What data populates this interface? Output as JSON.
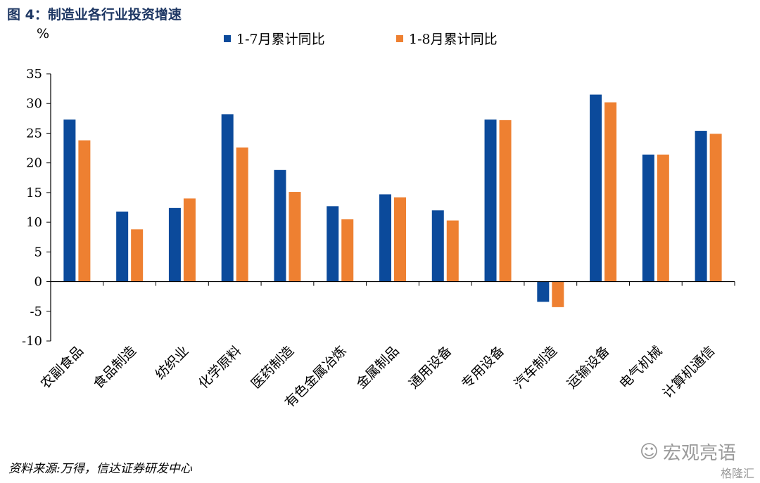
{
  "figure": {
    "title": "图 4：制造业各行业投资增速",
    "source": "资料来源:万得，信达证券研发中心",
    "watermark": "宏观亮语",
    "watermark2": "格隆汇"
  },
  "chart_data": {
    "type": "bar",
    "title": "",
    "ylabel": "%",
    "ylim": [
      -10,
      35
    ],
    "yticks": [
      -10,
      -5,
      0,
      5,
      10,
      15,
      20,
      25,
      30,
      35
    ],
    "grid": false,
    "legend_position": "top",
    "categories": [
      "农副食品",
      "食品制造",
      "纺织业",
      "化学原料",
      "医药制造",
      "有色金属冶炼",
      "金属制品",
      "通用设备",
      "专用设备",
      "汽车制造",
      "运输设备",
      "电气机械",
      "计算机通信"
    ],
    "series": [
      {
        "name": "1-7月累计同比",
        "color": "#0b4a9b",
        "values": [
          27.3,
          11.8,
          12.4,
          28.2,
          18.8,
          12.7,
          14.7,
          12.0,
          27.3,
          -3.4,
          31.5,
          21.4,
          25.4
        ]
      },
      {
        "name": "1-8月累计同比",
        "color": "#ee8031",
        "values": [
          23.8,
          8.8,
          14.0,
          22.6,
          15.1,
          10.5,
          14.2,
          10.3,
          27.2,
          -4.3,
          30.2,
          21.4,
          24.9
        ]
      }
    ]
  }
}
